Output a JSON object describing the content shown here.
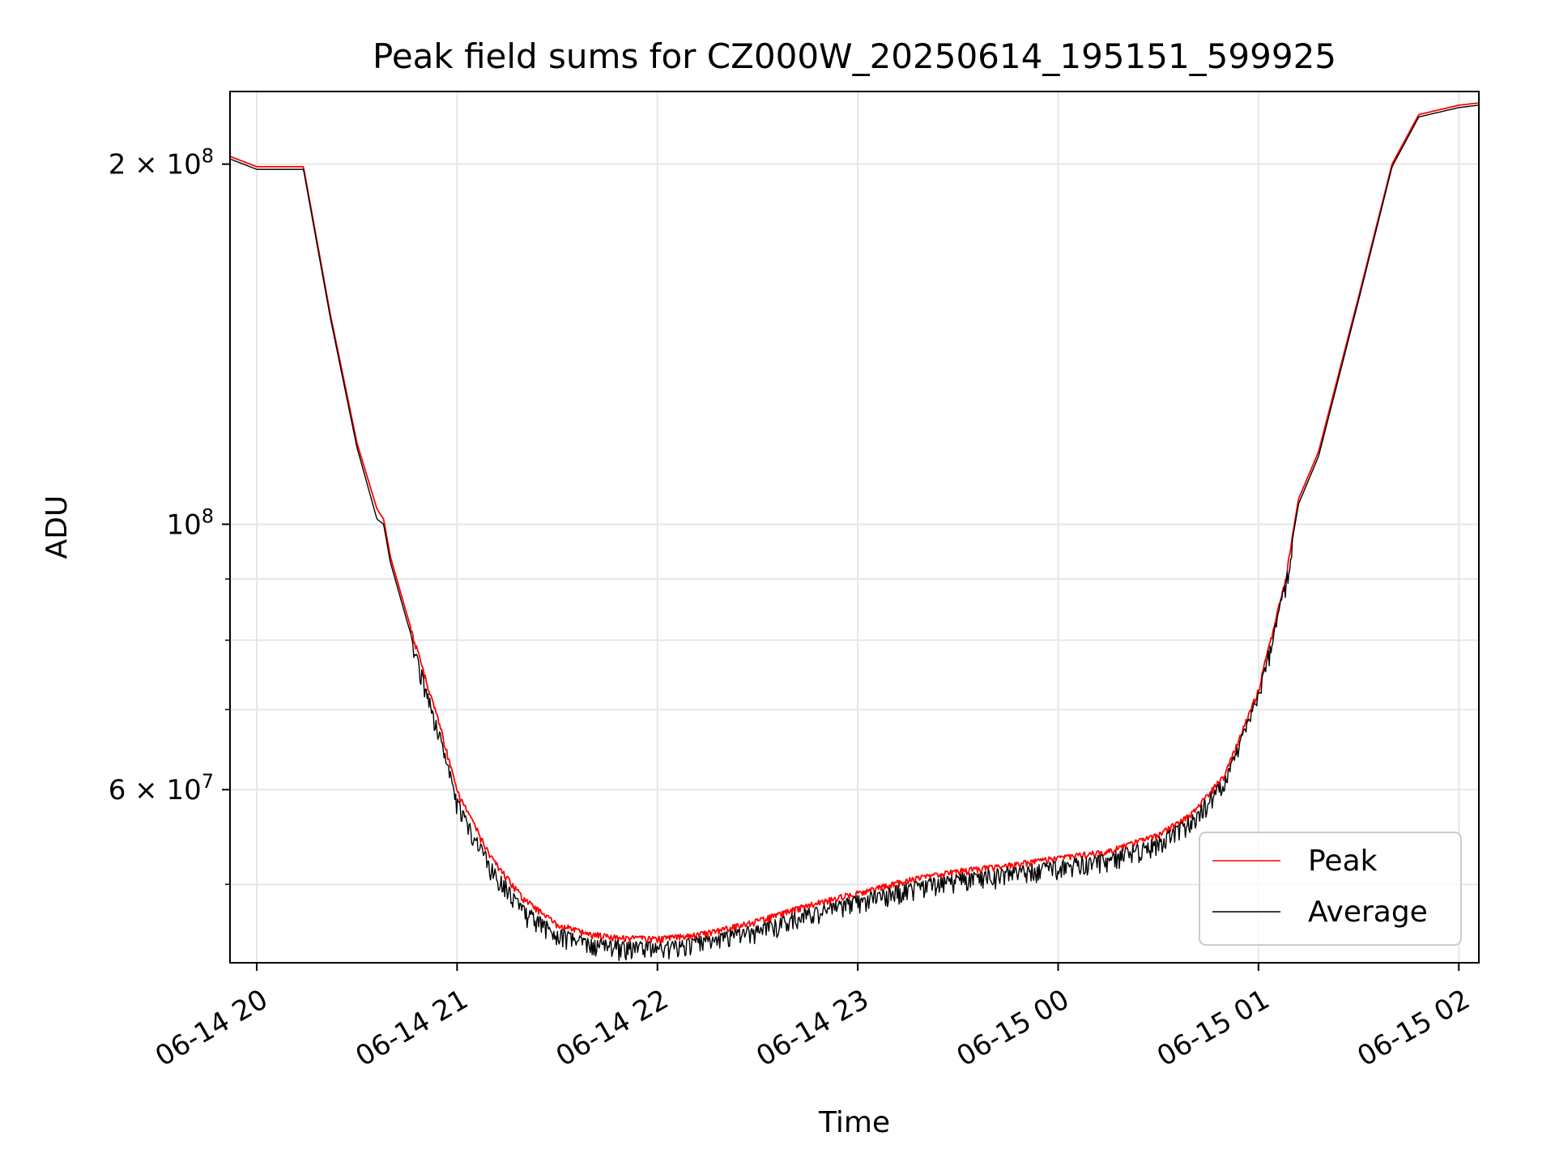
{
  "chart_data": {
    "type": "line",
    "title": "Peak field sums for CZ000W_20250614_195151_599925",
    "xlabel": "Time",
    "ylabel": "ADU",
    "y_scale": "log",
    "xlim": [
      "2025-06-14 19:52",
      "2025-06-15 02:06"
    ],
    "ylim": [
      43000000,
      230000000
    ],
    "grid": true,
    "legend_position": "lower-right",
    "x_ticks": [
      "2025-06-14 20:00",
      "2025-06-14 21:00",
      "2025-06-14 22:00",
      "2025-06-14 23:00",
      "2025-06-15 00:00",
      "2025-06-15 01:00",
      "2025-06-15 02:00"
    ],
    "x_tick_labels": [
      "06-14 20",
      "06-14 21",
      "06-14 22",
      "06-14 23",
      "06-15 00",
      "06-15 01",
      "06-15 02"
    ],
    "y_major_ticks": [
      {
        "value": 60000000,
        "mantissa": "6",
        "exponent": "7"
      },
      {
        "value": 100000000,
        "mantissa": "",
        "exponent": "8"
      },
      {
        "value": 200000000,
        "mantissa": "2",
        "exponent": "8"
      }
    ],
    "y_minor_ticks": [
      50000000,
      70000000,
      80000000,
      90000000
    ],
    "series": [
      {
        "name": "Peak",
        "color": "#ff0000",
        "x": [
          "2025-06-14 19:52",
          "2025-06-14 20:00",
          "2025-06-14 20:14",
          "2025-06-14 20:22",
          "2025-06-14 20:30",
          "2025-06-14 20:36",
          "2025-06-14 20:38",
          "2025-06-14 20:40",
          "2025-06-14 20:45",
          "2025-06-14 20:55",
          "2025-06-14 21:00",
          "2025-06-14 21:10",
          "2025-06-14 21:20",
          "2025-06-14 21:30",
          "2025-06-14 21:40",
          "2025-06-14 21:50",
          "2025-06-14 22:00",
          "2025-06-14 22:15",
          "2025-06-14 22:30",
          "2025-06-14 22:45",
          "2025-06-14 23:00",
          "2025-06-14 23:15",
          "2025-06-14 23:30",
          "2025-06-14 23:45",
          "2025-06-15 00:00",
          "2025-06-15 00:15",
          "2025-06-15 00:30",
          "2025-06-15 00:40",
          "2025-06-15 00:50",
          "2025-06-15 01:00",
          "2025-06-15 01:08",
          "2025-06-15 01:12",
          "2025-06-15 01:18",
          "2025-06-15 01:30",
          "2025-06-15 01:40",
          "2025-06-15 01:48",
          "2025-06-15 02:00",
          "2025-06-15 02:06"
        ],
        "y": [
          203000000,
          199000000,
          199000000,
          150000000,
          117000000,
          103000000,
          101000000,
          94000000,
          84000000,
          68000000,
          60000000,
          53000000,
          48800000,
          46500000,
          45600000,
          45300000,
          45200000,
          45700000,
          46800000,
          48200000,
          49400000,
          50600000,
          51500000,
          52100000,
          52800000,
          53500000,
          55200000,
          57500000,
          62000000,
          73000000,
          90000000,
          105000000,
          115000000,
          155000000,
          200000000,
          220000000,
          224000000,
          225000000
        ]
      },
      {
        "name": "Average",
        "color": "#000000",
        "x": [
          "2025-06-14 19:52",
          "2025-06-14 20:00",
          "2025-06-14 20:14",
          "2025-06-14 20:22",
          "2025-06-14 20:30",
          "2025-06-14 20:36",
          "2025-06-14 20:38",
          "2025-06-14 20:40",
          "2025-06-14 20:45",
          "2025-06-14 20:55",
          "2025-06-14 21:00",
          "2025-06-14 21:10",
          "2025-06-14 21:20",
          "2025-06-14 21:30",
          "2025-06-14 21:40",
          "2025-06-14 21:50",
          "2025-06-14 22:00",
          "2025-06-14 22:15",
          "2025-06-14 22:30",
          "2025-06-14 22:45",
          "2025-06-14 23:00",
          "2025-06-14 23:15",
          "2025-06-14 23:30",
          "2025-06-14 23:45",
          "2025-06-15 00:00",
          "2025-06-15 00:15",
          "2025-06-15 00:30",
          "2025-06-15 00:40",
          "2025-06-15 00:50",
          "2025-06-15 01:00",
          "2025-06-15 01:08",
          "2025-06-15 01:12",
          "2025-06-15 01:18",
          "2025-06-15 01:30",
          "2025-06-15 01:40",
          "2025-06-15 01:48",
          "2025-06-15 02:00",
          "2025-06-15 02:06"
        ],
        "y": [
          202000000,
          198000000,
          198000000,
          149000000,
          116000000,
          101000000,
          100000000,
          93000000,
          83000000,
          67000000,
          59000000,
          52300000,
          48000000,
          45900000,
          45000000,
          44800000,
          44700000,
          45300000,
          46300000,
          47700000,
          48900000,
          50100000,
          51000000,
          51600000,
          52300000,
          53000000,
          54700000,
          57000000,
          61500000,
          72500000,
          89500000,
          104000000,
          114000000,
          154000000,
          199000000,
          219000000,
          223000000,
          224000000
        ]
      }
    ]
  }
}
